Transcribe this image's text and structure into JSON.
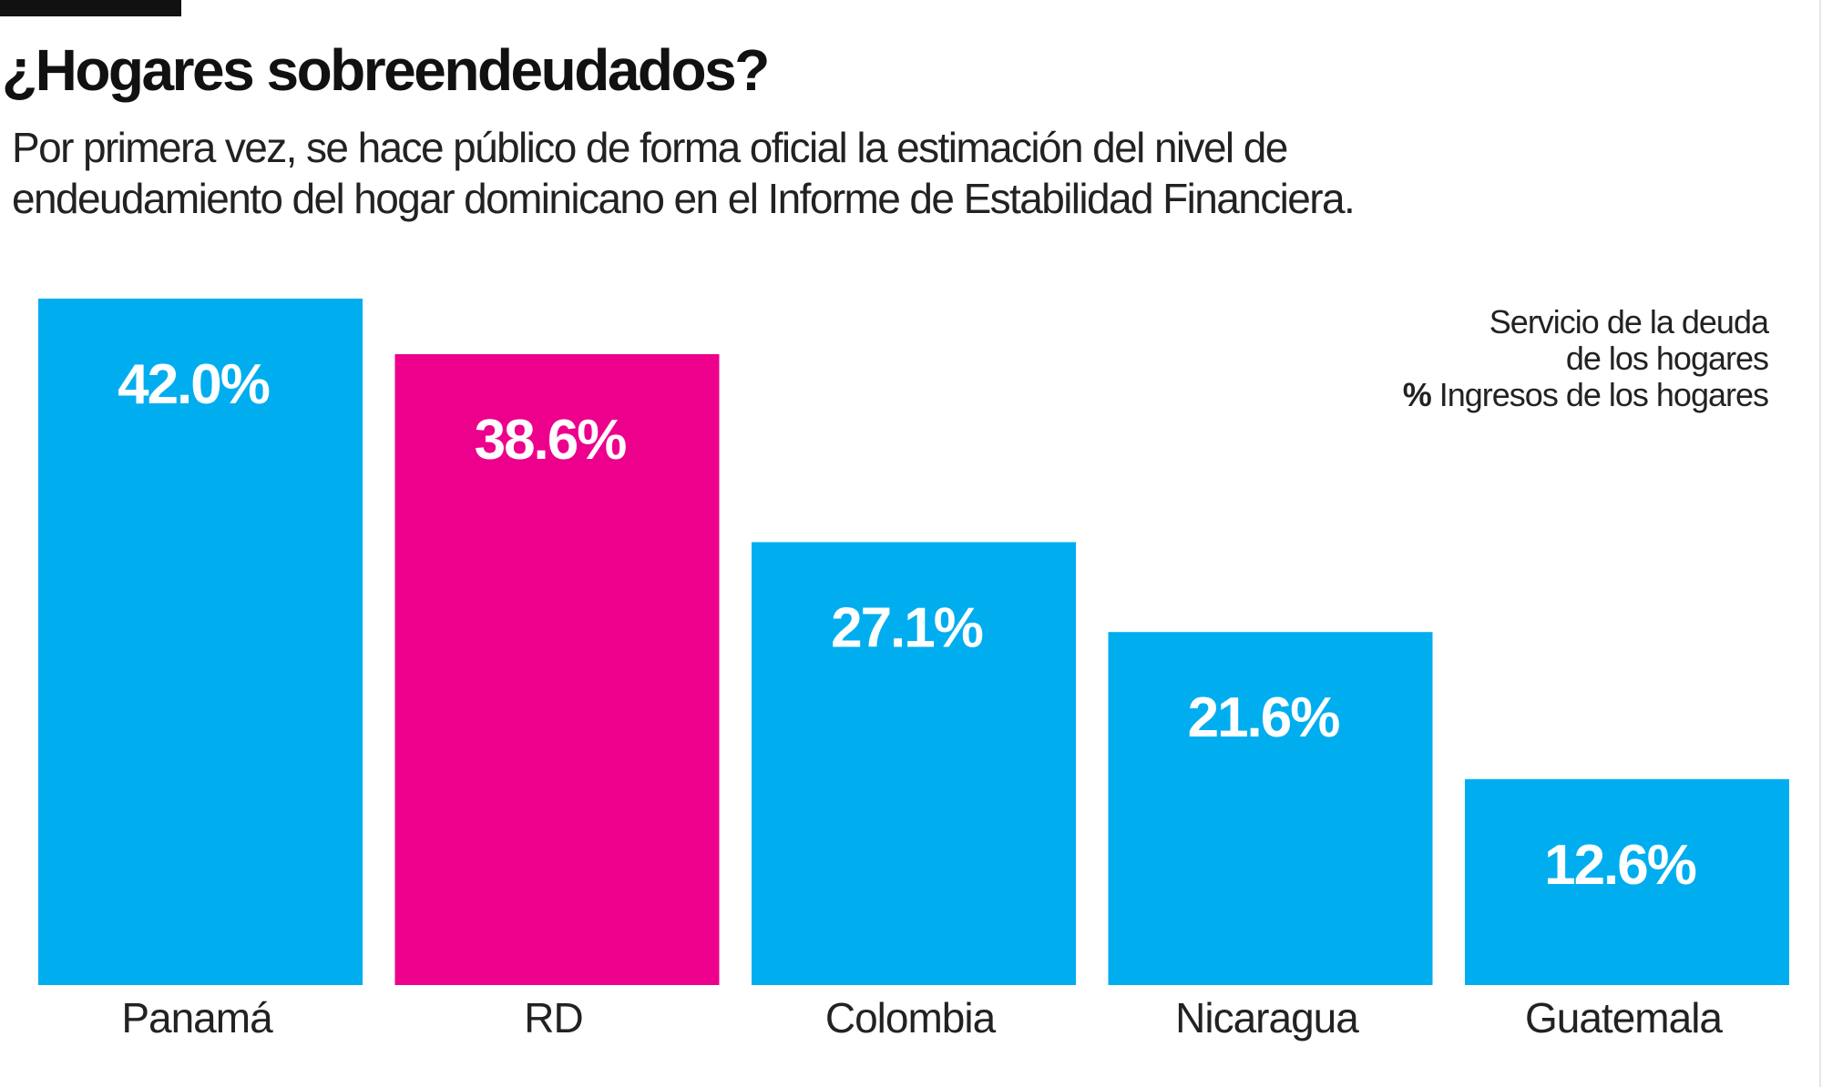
{
  "header": {
    "title": "¿Hogares sobreendeudados?",
    "subtitle": "Por primera vez, se hace público de forma oficial la estimación del nivel de endeudamiento del hogar dominicano en el Informe de Estabilidad Financiera."
  },
  "chart_data": {
    "type": "bar",
    "title": "¿Hogares sobreendeudados?",
    "categories": [
      "Panamá",
      "RD",
      "Colombia",
      "Nicaragua",
      "Guatemala"
    ],
    "values": [
      42.0,
      38.6,
      27.1,
      21.6,
      12.6
    ],
    "value_labels": [
      "42.0%",
      "38.6%",
      "27.1%",
      "21.6%",
      "12.6%"
    ],
    "colors": [
      "#00aeef",
      "#ec008c",
      "#00aeef",
      "#00aeef",
      "#00aeef"
    ],
    "legend": {
      "line1": "Servicio de la deuda",
      "line2": "de los hogares",
      "line3_bold": "%",
      "line3": " Ingresos de los hogares",
      "placement": "top-right"
    },
    "ylim": [
      0,
      42.0
    ],
    "grid": false,
    "axes_visible": false
  }
}
